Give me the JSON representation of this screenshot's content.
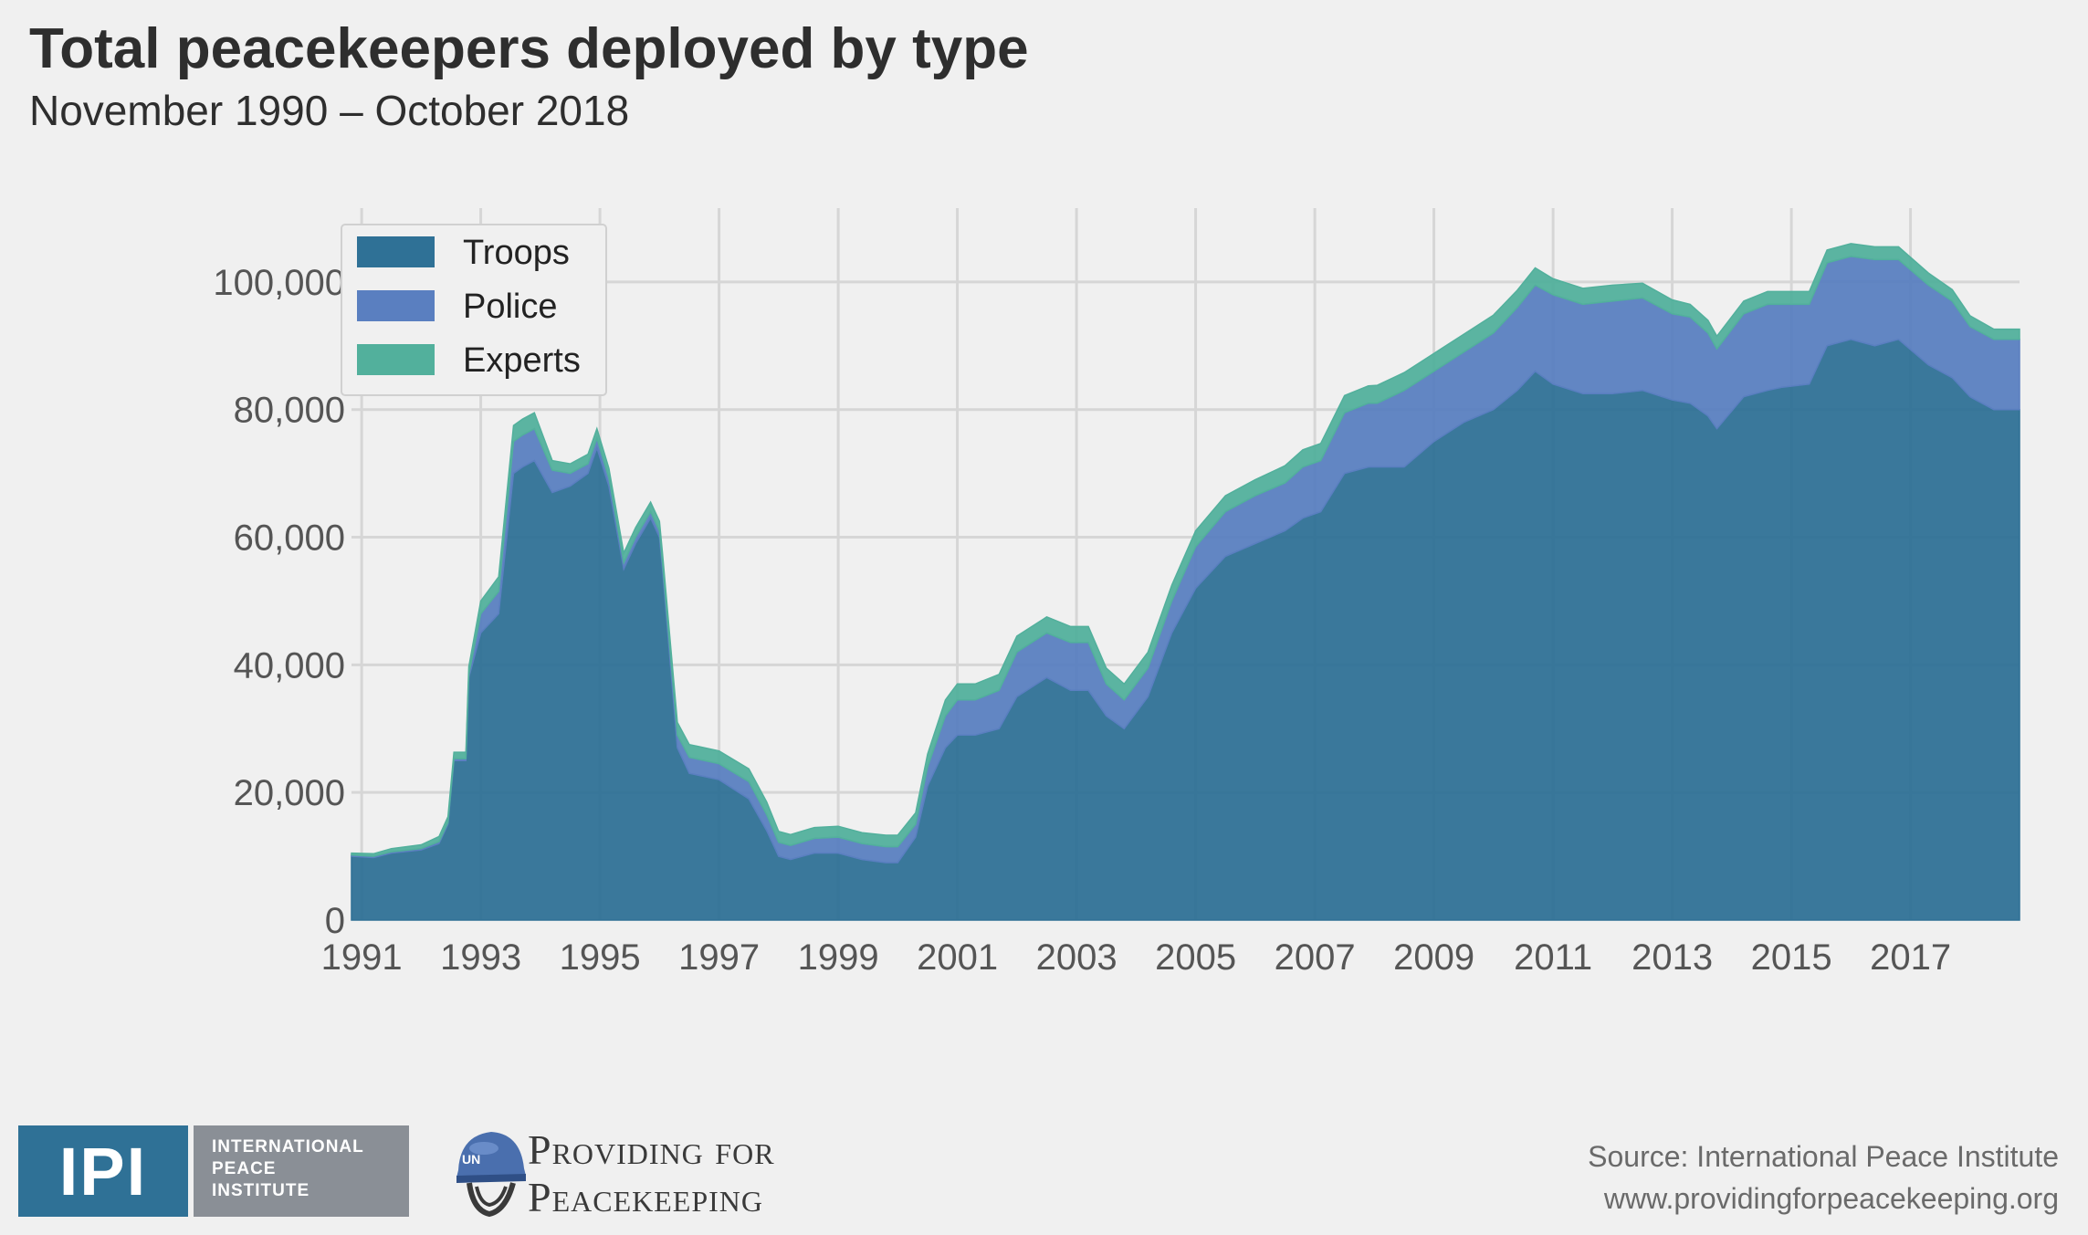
{
  "title": "Total peacekeepers deployed by type",
  "subtitle": "November 1990 – October 2018",
  "footer": {
    "source": "Source: International Peace Institute",
    "url": "www.providingforpeacekeeping.org",
    "ipi_abbr": "IPI",
    "ipi_line1": "INTERNATIONAL",
    "ipi_line2": "PEACE",
    "ipi_line3": "INSTITUTE",
    "p4p_line1": "Providing for",
    "p4p_line2": "Peacekeeping",
    "helmet_text": "UN"
  },
  "colors": {
    "background": "#f0f0f0",
    "troops": "#2f7196",
    "police": "#5a7fc0",
    "experts": "#52b09c",
    "grid": "#d6d6d6"
  },
  "chart_data": {
    "type": "area",
    "stacked": true,
    "title": "Total peacekeepers deployed by type",
    "subtitle": "November 1990 – October 2018",
    "xlabel": "",
    "ylabel": "",
    "xlim": [
      1990.83,
      2018.83
    ],
    "ylim": [
      0,
      112000
    ],
    "x_ticks": [
      1991,
      1993,
      1995,
      1997,
      1999,
      2001,
      2003,
      2005,
      2007,
      2009,
      2011,
      2013,
      2015,
      2017
    ],
    "y_ticks": [
      0,
      20000,
      40000,
      60000,
      80000,
      100000
    ],
    "y_tick_labels": [
      "0",
      "20,000",
      "40,000",
      "60,000",
      "80,000",
      "100,000"
    ],
    "grid": true,
    "legend_position": "top-left",
    "x": [
      1990.83,
      1991.2,
      1991.5,
      1992.0,
      1992.3,
      1992.45,
      1992.55,
      1992.75,
      1992.8,
      1993.0,
      1993.3,
      1993.55,
      1993.7,
      1993.9,
      1994.2,
      1994.5,
      1994.8,
      1994.95,
      1995.15,
      1995.4,
      1995.6,
      1995.85,
      1996.0,
      1996.05,
      1996.3,
      1996.5,
      1997.0,
      1997.5,
      1997.8,
      1998.0,
      1998.2,
      1998.6,
      1999.0,
      1999.4,
      1999.8,
      2000.0,
      2000.3,
      2000.5,
      2000.8,
      2001.0,
      2001.3,
      2001.7,
      2002.0,
      2002.5,
      2002.9,
      2003.2,
      2003.5,
      2003.8,
      2004.2,
      2004.6,
      2005.0,
      2005.5,
      2006.0,
      2006.5,
      2006.8,
      2007.1,
      2007.5,
      2007.9,
      2008.05,
      2008.5,
      2009.0,
      2009.5,
      2010.0,
      2010.4,
      2010.7,
      2011.0,
      2011.5,
      2012.0,
      2012.5,
      2013.0,
      2013.3,
      2013.6,
      2013.75,
      2014.2,
      2014.6,
      2014.85,
      2015.3,
      2015.6,
      2016.0,
      2016.4,
      2016.8,
      2017.3,
      2017.7,
      2018.0,
      2018.4,
      2018.83
    ],
    "series": [
      {
        "name": "Troops",
        "color": "#2f7196",
        "values": [
          10000,
          9800,
          10500,
          11000,
          12000,
          15000,
          25000,
          25000,
          38000,
          45000,
          48000,
          70000,
          71000,
          72000,
          67000,
          68000,
          70000,
          74000,
          68000,
          55000,
          59000,
          63000,
          60000,
          55000,
          27000,
          23000,
          22000,
          19000,
          14000,
          10000,
          9500,
          10500,
          10500,
          9500,
          9000,
          9000,
          13000,
          21000,
          27000,
          29000,
          29000,
          30000,
          35000,
          38000,
          36000,
          36000,
          32000,
          30000,
          35000,
          45000,
          52000,
          57000,
          59000,
          61000,
          63000,
          64000,
          70000,
          71000,
          71000,
          71000,
          75000,
          78000,
          80000,
          83000,
          86000,
          84000,
          82500,
          82500,
          83000,
          81500,
          81000,
          79000,
          77000,
          82000,
          83000,
          83500,
          84000,
          90000,
          91000,
          90000,
          91000,
          87000,
          85000,
          82000,
          80000,
          80000
        ]
      },
      {
        "name": "Police",
        "color": "#5a7fc0",
        "values": [
          200,
          200,
          200,
          200,
          300,
          300,
          300,
          300,
          500,
          3000,
          3500,
          5000,
          5000,
          5000,
          3500,
          2000,
          1500,
          1500,
          1300,
          1000,
          1000,
          1000,
          1000,
          1000,
          2000,
          2500,
          2500,
          2700,
          2500,
          2200,
          2200,
          2300,
          2500,
          2500,
          2500,
          2500,
          2000,
          3000,
          5000,
          5500,
          5500,
          6000,
          7000,
          7000,
          7500,
          7500,
          5000,
          4500,
          4500,
          5000,
          6500,
          7000,
          7500,
          7500,
          8000,
          8000,
          9500,
          10000,
          10000,
          12000,
          11000,
          11000,
          12000,
          13000,
          13500,
          14000,
          14000,
          14500,
          14500,
          13500,
          13500,
          13000,
          12500,
          13000,
          13500,
          13000,
          12500,
          13000,
          13000,
          13500,
          12500,
          12500,
          12000,
          11000,
          11000,
          11000
        ]
      },
      {
        "name": "Experts",
        "color": "#52b09c",
        "values": [
          300,
          400,
          500,
          600,
          800,
          900,
          1000,
          1000,
          1200,
          2000,
          2300,
          2500,
          2500,
          2500,
          1500,
          1500,
          1500,
          1500,
          1500,
          1500,
          1500,
          1500,
          1500,
          1500,
          2000,
          2000,
          2000,
          2000,
          2000,
          1700,
          1700,
          1700,
          1700,
          1700,
          1800,
          1800,
          1800,
          2000,
          2500,
          2500,
          2500,
          2500,
          2500,
          2500,
          2500,
          2500,
          2500,
          2500,
          2500,
          2500,
          2500,
          2500,
          2500,
          2700,
          2700,
          2700,
          2700,
          2700,
          2800,
          2800,
          2800,
          2800,
          2800,
          2700,
          2700,
          2500,
          2500,
          2500,
          2300,
          2200,
          2000,
          2000,
          2000,
          2000,
          2000,
          2000,
          2000,
          2000,
          2000,
          2000,
          2000,
          1900,
          1800,
          1700,
          1600,
          1600
        ]
      }
    ]
  }
}
